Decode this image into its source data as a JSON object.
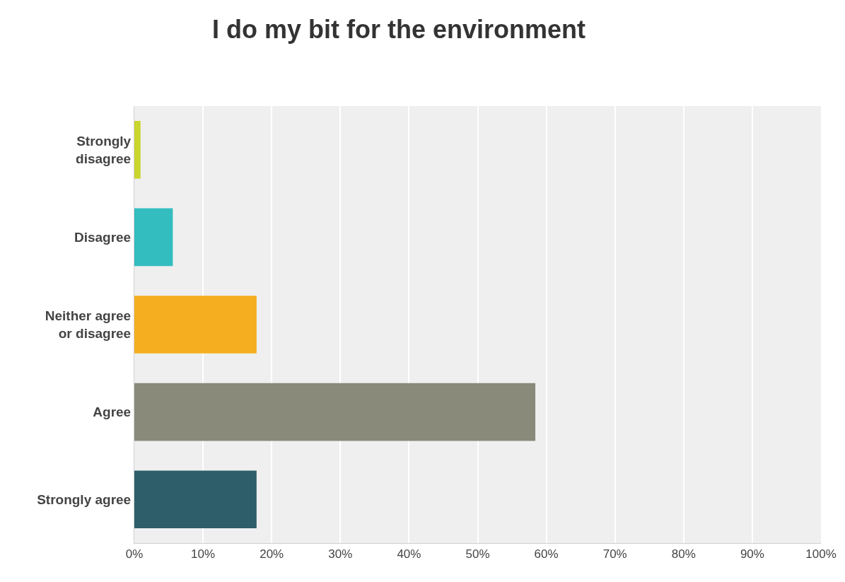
{
  "chart_data": {
    "type": "bar",
    "orientation": "horizontal",
    "title": "I do my bit for the environment",
    "categories": [
      "Strongly disagree",
      "Disagree",
      "Neither agree or disagree",
      "Agree",
      "Strongly agree"
    ],
    "values": [
      0.9,
      5.6,
      17.8,
      58.4,
      17.8
    ],
    "colors": [
      "#c9d52c",
      "#33bdbf",
      "#f5ae1f",
      "#898a7a",
      "#2d5e6a"
    ],
    "xlim": [
      0,
      100
    ],
    "xticks": [
      {
        "value": 0,
        "label": "0%"
      },
      {
        "value": 10,
        "label": "10%"
      },
      {
        "value": 20,
        "label": "20%"
      },
      {
        "value": 30,
        "label": "30%"
      },
      {
        "value": 40,
        "label": "40%"
      },
      {
        "value": 50,
        "label": "50%"
      },
      {
        "value": 60,
        "label": "60%"
      },
      {
        "value": 70,
        "label": "70%"
      },
      {
        "value": 80,
        "label": "80%"
      },
      {
        "value": 90,
        "label": "90%"
      },
      {
        "value": 100,
        "label": "100%"
      }
    ],
    "grid": "x"
  }
}
